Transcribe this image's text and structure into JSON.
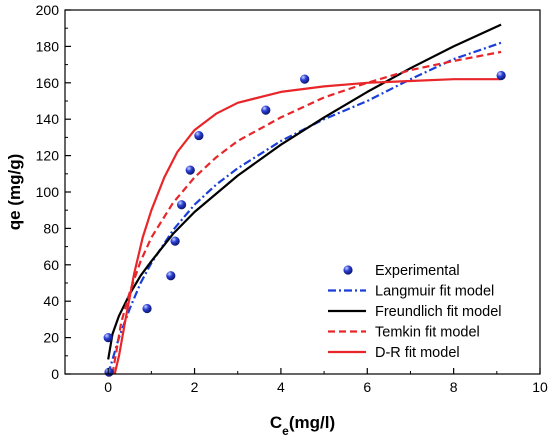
{
  "chart_data": {
    "type": "scatter",
    "xlabel_main": "C",
    "xlabel_sub": "e",
    "xlabel_rest": "(mg/l)",
    "ylabel": "qe (mg/g)",
    "xlim": [
      -1,
      10
    ],
    "ylim": [
      0,
      200
    ],
    "x_ticks": [
      0,
      2,
      4,
      6,
      8,
      10
    ],
    "y_ticks": [
      0,
      20,
      40,
      60,
      80,
      100,
      120,
      140,
      160,
      180,
      200
    ],
    "grid": false,
    "legend_position": "bottom-right",
    "experimental": {
      "name": "Experimental",
      "color": "#2b3fd6",
      "x": [
        0.0,
        0.02,
        0.9,
        1.45,
        1.55,
        1.7,
        1.9,
        2.1,
        3.65,
        4.55,
        9.1
      ],
      "y": [
        20,
        1,
        36,
        54,
        73,
        93,
        112,
        131,
        145,
        162,
        164
      ]
    },
    "series": [
      {
        "name": "Langmuir fit model",
        "color": "#1a3fd8",
        "dash": "dashdot",
        "x": [
          0,
          0.25,
          0.5,
          0.75,
          1,
          1.5,
          2,
          2.5,
          3,
          4,
          5,
          6,
          7,
          8,
          9.1
        ],
        "y": [
          0,
          20,
          36,
          50,
          61,
          79,
          93,
          104,
          113,
          128,
          140,
          150,
          162,
          173,
          182
        ]
      },
      {
        "name": "Freundlich fit model",
        "color": "#000000",
        "dash": "solid",
        "x": [
          0,
          0.1,
          0.25,
          0.5,
          0.75,
          1,
          1.5,
          2,
          3,
          4,
          5,
          6,
          7,
          8,
          9.1
        ],
        "y": [
          8,
          22,
          32,
          44,
          54,
          62,
          77,
          89,
          109,
          126,
          141,
          155,
          168,
          180,
          192
        ]
      },
      {
        "name": "Temkin fit model",
        "color": "#e8262a",
        "dash": "dash",
        "x": [
          0.1,
          0.3,
          0.5,
          0.75,
          1,
          1.5,
          2,
          2.5,
          3,
          4,
          5,
          6,
          7,
          8,
          9.1
        ],
        "y": [
          0,
          28,
          45,
          62,
          75,
          94,
          108,
          119,
          128,
          141,
          152,
          160,
          167,
          172,
          177
        ]
      },
      {
        "name": "D-R fit model",
        "color": "#e8262a",
        "dash": "solid",
        "x": [
          0.15,
          0.25,
          0.4,
          0.6,
          0.8,
          1.0,
          1.3,
          1.6,
          2.0,
          2.5,
          3.0,
          4.0,
          5.0,
          6.0,
          7.0,
          8.0,
          9.1
        ],
        "y": [
          0,
          10,
          30,
          55,
          75,
          90,
          108,
          122,
          134,
          143,
          149,
          155,
          158,
          160,
          161,
          162,
          162
        ]
      }
    ]
  }
}
